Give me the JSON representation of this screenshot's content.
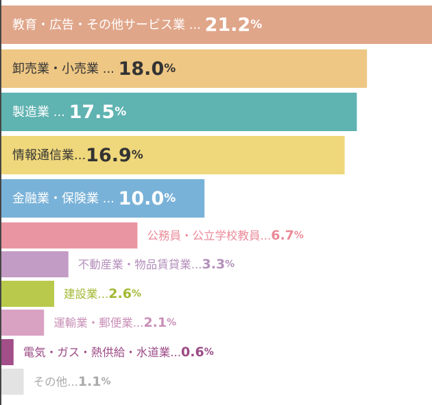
{
  "chart_data": {
    "type": "bar",
    "orientation": "horizontal",
    "unit": "%",
    "xlim": [
      0,
      21.2
    ],
    "categories": [
      "教育・広告・その他サービス業",
      "卸売業・小売業",
      "製造業",
      "情報通信業",
      "金融業・保険業",
      "公務員・公立学校教員",
      "不動産業・物品賃貸業",
      "建設業",
      "運輸業・郵便業",
      "電気・ガス・熱供給・水道業",
      "その他"
    ],
    "values": [
      21.2,
      18.0,
      17.5,
      16.9,
      10.0,
      6.7,
      3.3,
      2.6,
      2.1,
      0.6,
      1.1
    ],
    "value_labels": [
      "21.2",
      "18.0",
      "17.5",
      "16.9",
      "10.0",
      "6.7",
      "3.3",
      "2.6",
      "2.1",
      "0.6",
      "1.1"
    ],
    "separators": [
      " ... ",
      " ... ",
      " ... ",
      "...",
      " ... ",
      "...",
      "...",
      "...",
      "...",
      "...",
      "..."
    ],
    "colors": [
      "#e0a68a",
      "#eec784",
      "#5fb3b1",
      "#efd77b",
      "#79b2d8",
      "#ea96a2",
      "#c39cc6",
      "#b8c94c",
      "#d9a2c3",
      "#a14e89",
      "#e3e3e3"
    ],
    "label_colors": [
      "#ffffff",
      "#333333",
      "#ffffff",
      "#333333",
      "#ffffff",
      "#ea8a98",
      "#b48fbb",
      "#a4b834",
      "#c98fb7",
      "#9b4a85",
      "#aaaaaa"
    ]
  }
}
